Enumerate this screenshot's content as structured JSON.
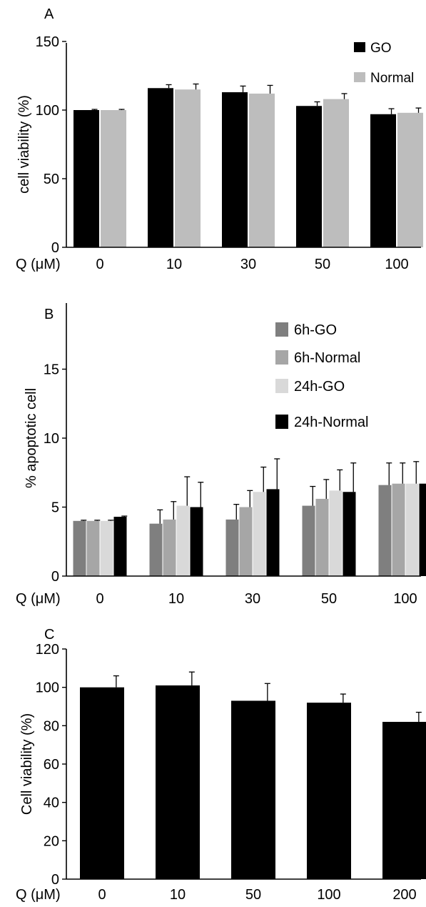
{
  "chart_data": [
    {
      "panel": "A",
      "type": "bar",
      "ylabel": "cell viability (%)",
      "xlabel": "Q (μM)",
      "categories": [
        "0",
        "10",
        "30",
        "50",
        "100"
      ],
      "ylim": [
        0,
        150
      ],
      "yticks": [
        0,
        50,
        100,
        150
      ],
      "legend_position": "top-right",
      "series": [
        {
          "name": "GO",
          "color": "#000000",
          "values": [
            100,
            116,
            113,
            103,
            97
          ],
          "errors": [
            0.5,
            2.5,
            4.5,
            3,
            4
          ]
        },
        {
          "name": "Normal",
          "color": "#bdbdbd",
          "values": [
            100,
            115,
            112,
            108,
            98
          ],
          "errors": [
            0.5,
            4,
            6,
            4,
            3.5
          ]
        }
      ]
    },
    {
      "panel": "B",
      "type": "bar",
      "ylabel": "% apoptotic cell",
      "xlabel": "Q (μM)",
      "categories": [
        "0",
        "10",
        "30",
        "50",
        "100"
      ],
      "ylim": [
        0,
        20
      ],
      "yticks": [
        0,
        5,
        10,
        15
      ],
      "legend_position": "top-right",
      "series": [
        {
          "name": "6h-GO",
          "color": "#7f7f7f",
          "values": [
            4.0,
            3.8,
            4.1,
            5.1,
            6.6
          ],
          "errors": [
            0.05,
            1.0,
            1.1,
            1.4,
            1.6
          ]
        },
        {
          "name": "6h-Normal",
          "color": "#a6a6a6",
          "values": [
            4.0,
            4.1,
            5.0,
            5.6,
            6.7
          ],
          "errors": [
            0.05,
            1.3,
            1.2,
            1.4,
            1.5
          ]
        },
        {
          "name": "24h-GO",
          "color": "#d9d9d9",
          "values": [
            4.0,
            5.1,
            6.1,
            6.2,
            6.7
          ],
          "errors": [
            0.05,
            2.1,
            1.8,
            1.5,
            1.6
          ]
        },
        {
          "name": "24h-Normal",
          "color": "#000000",
          "values": [
            4.3,
            5.0,
            6.3,
            6.1,
            6.7
          ],
          "errors": [
            0.05,
            1.8,
            2.2,
            2.1,
            2.6
          ]
        }
      ]
    },
    {
      "panel": "C",
      "type": "bar",
      "ylabel": "Cell viability (%)",
      "xlabel": "Q (μM)",
      "categories": [
        "0",
        "10",
        "50",
        "100",
        "200"
      ],
      "ylim": [
        0,
        120
      ],
      "yticks": [
        0,
        20,
        40,
        60,
        80,
        100,
        120
      ],
      "series": [
        {
          "color": "#000000",
          "values": [
            100,
            101,
            93,
            92,
            82
          ],
          "errors": [
            6,
            7,
            9,
            4.5,
            5
          ]
        }
      ]
    }
  ]
}
